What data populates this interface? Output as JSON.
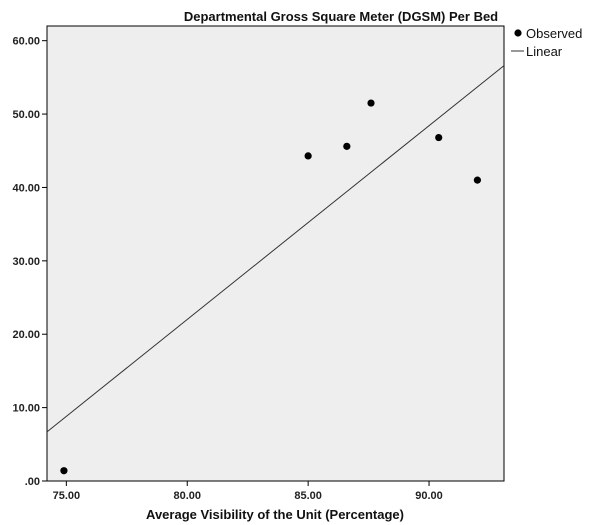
{
  "chart_data": {
    "type": "scatter",
    "title": "Departmental Gross Square Meter (DGSM) Per Bed",
    "xlabel": "Average Visibility of the Unit (Percentage)",
    "ylabel": "",
    "xlim": [
      74.2,
      93.1
    ],
    "ylim": [
      0,
      62
    ],
    "x_ticks": [
      75,
      80,
      85,
      90
    ],
    "x_tick_labels": [
      "75.00",
      "80.00",
      "85.00",
      "90.00"
    ],
    "y_ticks": [
      0,
      10,
      20,
      30,
      40,
      50,
      60
    ],
    "y_tick_labels": [
      ".00",
      "10.00",
      "20.00",
      "30.00",
      "40.00",
      "50.00",
      "60.00"
    ],
    "grid": false,
    "legend_position": "top-right, outside plot",
    "background_color": "#eeeeee",
    "series": [
      {
        "name": "Observed",
        "kind": "points",
        "color": "#000000",
        "points": [
          {
            "x": 74.9,
            "y": 1.4
          },
          {
            "x": 85.0,
            "y": 44.3
          },
          {
            "x": 86.6,
            "y": 45.6
          },
          {
            "x": 87.6,
            "y": 51.5
          },
          {
            "x": 90.4,
            "y": 46.8
          },
          {
            "x": 92.0,
            "y": 41.0
          }
        ]
      },
      {
        "name": "Linear",
        "kind": "line",
        "color": "#333333",
        "points": [
          {
            "x": 74.2,
            "y": 6.7
          },
          {
            "x": 93.1,
            "y": 56.6
          }
        ]
      }
    ]
  }
}
